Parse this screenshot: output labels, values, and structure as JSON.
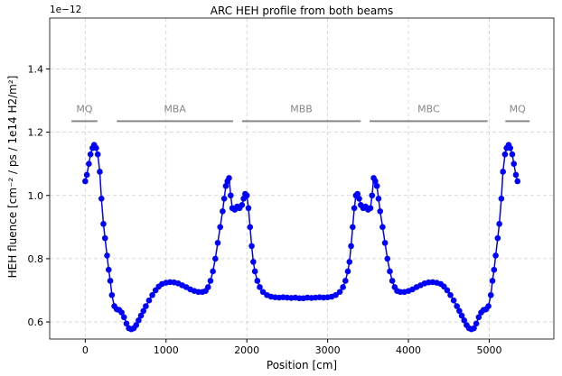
{
  "chart_data": {
    "type": "line",
    "title": "ARC HEH profile from both beams",
    "xlabel": "Position [cm]",
    "ylabel": "HEH fluence [cm⁻² / ps / 1e14 H2/m²]",
    "y_offset_text": "1e−12",
    "x": [
      0,
      20,
      45,
      65,
      90,
      110,
      135,
      155,
      180,
      200,
      225,
      245,
      270,
      290,
      310,
      330,
      360,
      390,
      420,
      450,
      480,
      510,
      540,
      570,
      600,
      630,
      660,
      690,
      720,
      750,
      790,
      830,
      870,
      910,
      950,
      1000,
      1050,
      1100,
      1150,
      1200,
      1250,
      1300,
      1350,
      1400,
      1450,
      1490,
      1520,
      1550,
      1580,
      1610,
      1640,
      1670,
      1700,
      1720,
      1740,
      1760,
      1780,
      1800,
      1820,
      1850,
      1880,
      1910,
      1940,
      1960,
      1980,
      2000,
      2020,
      2040,
      2060,
      2080,
      2100,
      2130,
      2160,
      2200,
      2250,
      2300,
      2350,
      2400,
      2450,
      2500,
      2550,
      2600,
      2650,
      2700,
      2750,
      2800,
      2850,
      2900,
      2950,
      3000,
      3050,
      3100,
      3150,
      3190,
      3220,
      3250,
      3270,
      3290,
      3310,
      3330,
      3350,
      3370,
      3390,
      3410,
      3440,
      3470,
      3500,
      3530,
      3550,
      3570,
      3590,
      3610,
      3630,
      3650,
      3680,
      3710,
      3740,
      3770,
      3800,
      3830,
      3860,
      3900,
      3950,
      4000,
      4050,
      4100,
      4150,
      4200,
      4250,
      4300,
      4350,
      4400,
      4440,
      4480,
      4520,
      4560,
      4600,
      4630,
      4660,
      4690,
      4720,
      4750,
      4780,
      4810,
      4840,
      4870,
      4900,
      4930,
      4960,
      4990,
      5020,
      5040,
      5060,
      5080,
      5105,
      5125,
      5150,
      5170,
      5195,
      5215,
      5240,
      5260,
      5285,
      5305,
      5330,
      5350
    ],
    "values": [
      1.045,
      1.065,
      1.1,
      1.13,
      1.15,
      1.16,
      1.15,
      1.13,
      1.075,
      0.99,
      0.91,
      0.865,
      0.81,
      0.765,
      0.73,
      0.685,
      0.65,
      0.64,
      0.638,
      0.63,
      0.615,
      0.595,
      0.58,
      0.577,
      0.58,
      0.59,
      0.605,
      0.62,
      0.635,
      0.65,
      0.668,
      0.685,
      0.7,
      0.712,
      0.72,
      0.724,
      0.726,
      0.725,
      0.722,
      0.716,
      0.71,
      0.703,
      0.698,
      0.695,
      0.695,
      0.698,
      0.71,
      0.73,
      0.76,
      0.8,
      0.85,
      0.9,
      0.95,
      0.99,
      1.03,
      1.045,
      1.055,
      1.0,
      0.96,
      0.955,
      0.965,
      0.96,
      0.97,
      0.99,
      1.005,
      1.0,
      0.96,
      0.9,
      0.84,
      0.79,
      0.76,
      0.73,
      0.71,
      0.695,
      0.685,
      0.68,
      0.678,
      0.677,
      0.678,
      0.677,
      0.676,
      0.677,
      0.675,
      0.675,
      0.677,
      0.676,
      0.677,
      0.678,
      0.677,
      0.678,
      0.68,
      0.685,
      0.695,
      0.71,
      0.73,
      0.76,
      0.79,
      0.84,
      0.9,
      0.96,
      1.0,
      1.005,
      0.99,
      0.97,
      0.96,
      0.965,
      0.955,
      0.96,
      1.0,
      1.055,
      1.045,
      1.03,
      0.99,
      0.95,
      0.9,
      0.85,
      0.8,
      0.76,
      0.73,
      0.71,
      0.698,
      0.695,
      0.695,
      0.698,
      0.703,
      0.71,
      0.716,
      0.722,
      0.725,
      0.726,
      0.724,
      0.72,
      0.712,
      0.7,
      0.685,
      0.668,
      0.65,
      0.635,
      0.62,
      0.605,
      0.59,
      0.58,
      0.577,
      0.58,
      0.595,
      0.615,
      0.63,
      0.638,
      0.64,
      0.65,
      0.685,
      0.73,
      0.765,
      0.81,
      0.865,
      0.91,
      0.99,
      1.075,
      1.13,
      1.15,
      1.16,
      1.15,
      1.13,
      1.1,
      1.065,
      1.045
    ],
    "color": "#0000ff",
    "marker": "o",
    "regions": [
      {
        "label": "MQ",
        "x": [
          -170,
          150
        ]
      },
      {
        "label": "MBA",
        "x": [
          390,
          1830
        ]
      },
      {
        "label": "MBB",
        "x": [
          1940,
          3410
        ]
      },
      {
        "label": "MBC",
        "x": [
          3520,
          4980
        ]
      },
      {
        "label": "MQ",
        "x": [
          5200,
          5500
        ]
      }
    ],
    "region_y": 1.235,
    "region_color": "#888888",
    "xlim": [
      -440,
      5800
    ],
    "ylim": [
      0.546,
      1.561
    ],
    "xticks": [
      0,
      1000,
      2000,
      3000,
      4000,
      5000
    ],
    "yticks": [
      0.6,
      0.8,
      {
        "value": 1,
        "label": "1.0"
      },
      1.2,
      1.4
    ],
    "grid": true
  }
}
